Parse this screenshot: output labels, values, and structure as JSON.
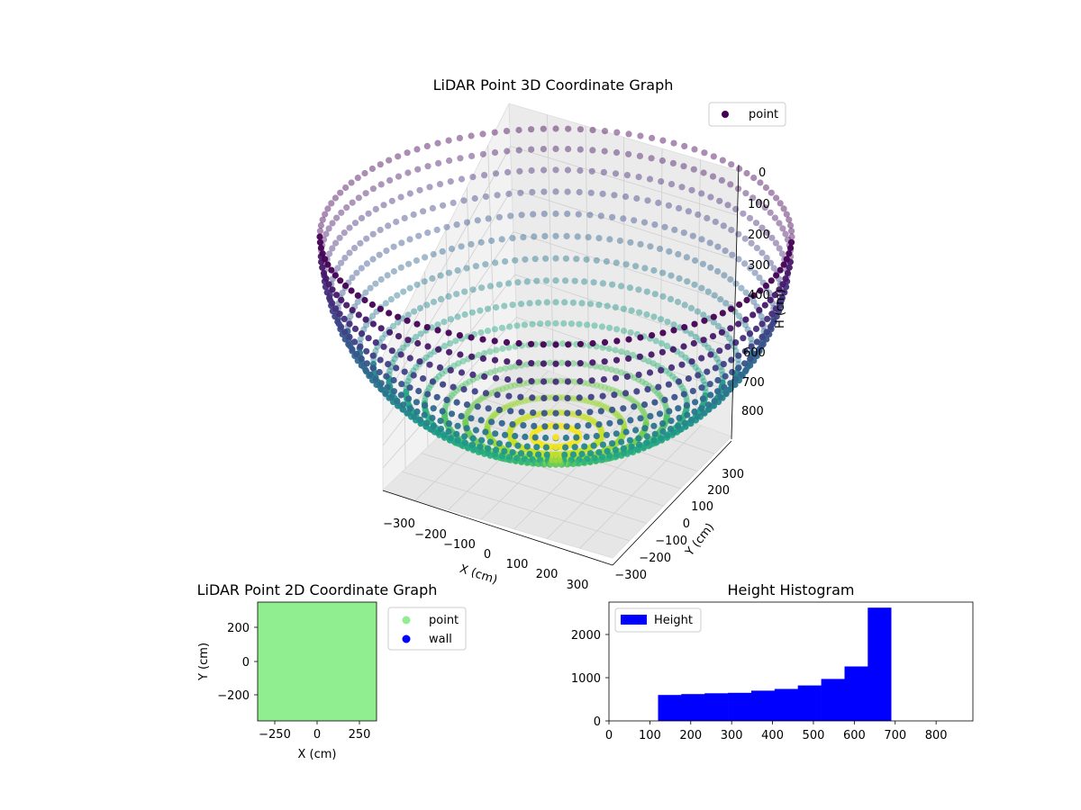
{
  "chart_data": [
    {
      "type": "scatter3d",
      "title": "LiDAR Point 3D Coordinate Graph",
      "xlabel": "X (cm)",
      "ylabel": "Y (cm)",
      "zlabel": "H (cm)",
      "legend": [
        "point"
      ],
      "legend_position": "top-right",
      "colormap": "viridis",
      "shape": "hemispherical bowl",
      "xlim": [
        -350,
        350
      ],
      "ylim": [
        -350,
        350
      ],
      "zlim": [
        0,
        870
      ],
      "z_inverted": true,
      "x_ticks": [
        "−300",
        "−200",
        "−100",
        "0",
        "100",
        "200",
        "300"
      ],
      "y_ticks": [
        "−300",
        "−200",
        "−100",
        "0",
        "100",
        "200",
        "300"
      ],
      "z_ticks": [
        "0",
        "100",
        "200",
        "300",
        "400",
        "500",
        "600",
        "700",
        "800"
      ],
      "grid": true
    },
    {
      "type": "scatter",
      "title": "LiDAR Point 2D Coordinate Graph",
      "xlabel": "X (cm)",
      "ylabel": "Y (cm)",
      "xlim": [
        -350,
        350
      ],
      "ylim": [
        -350,
        350
      ],
      "x_ticks": [
        "−250",
        "0",
        "250"
      ],
      "y_ticks": [
        "200",
        "0",
        "−200"
      ],
      "series": [
        {
          "name": "point",
          "color": "#90ee90"
        },
        {
          "name": "wall",
          "color": "#0000ff"
        }
      ],
      "legend_position": "outside-right"
    },
    {
      "type": "bar",
      "title": "Height Histogram",
      "bins": [
        [
          120,
          177
        ],
        [
          177,
          234
        ],
        [
          234,
          291
        ],
        [
          291,
          348
        ],
        [
          348,
          405
        ],
        [
          405,
          462
        ],
        [
          462,
          519
        ],
        [
          519,
          576
        ],
        [
          576,
          633
        ],
        [
          633,
          690
        ]
      ],
      "values": [
        600,
        620,
        640,
        650,
        700,
        740,
        820,
        970,
        1260,
        2620
      ],
      "series": [
        {
          "name": "Height",
          "color": "#0000ff"
        }
      ],
      "xlim": [
        0,
        890
      ],
      "ylim": [
        0,
        2750
      ],
      "x_ticks": [
        "0",
        "100",
        "200",
        "300",
        "400",
        "500",
        "600",
        "700",
        "800"
      ],
      "y_ticks": [
        "0",
        "1000",
        "2000"
      ],
      "legend_position": "top-left"
    }
  ]
}
